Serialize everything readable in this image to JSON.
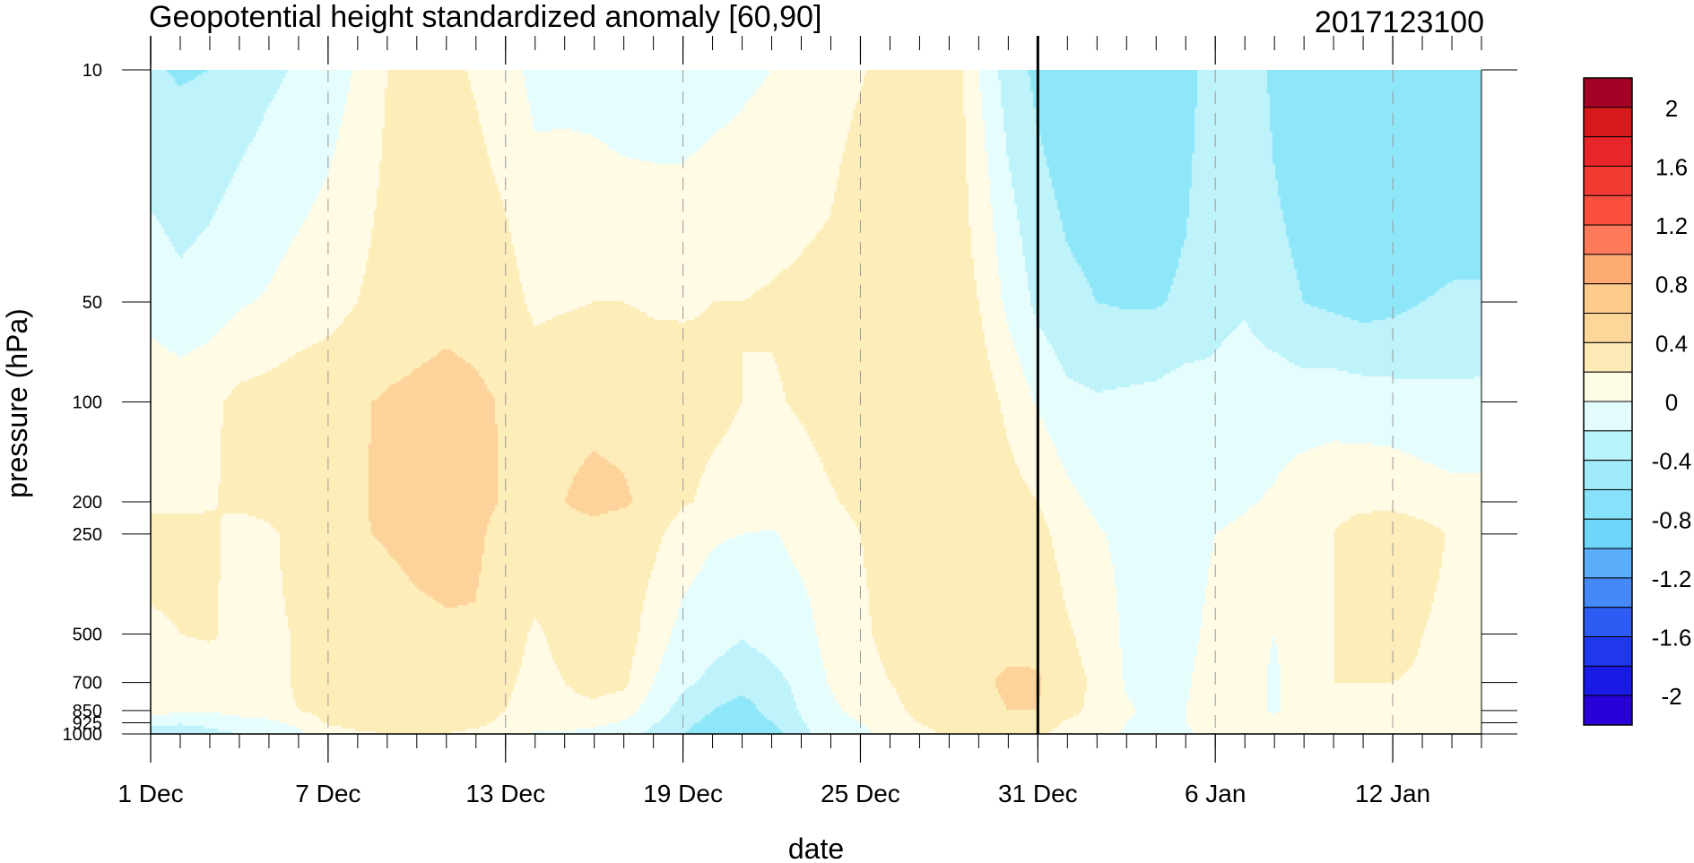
{
  "chart_data": {
    "type": "heatmap",
    "title": "Geopotential height standardized anomaly [60,90]",
    "title_right": "2017123100",
    "xlabel": "date",
    "ylabel": "pressure (hPa)",
    "x_ticks": [
      "1 Dec",
      "7 Dec",
      "13 Dec",
      "19 Dec",
      "25 Dec",
      "31 Dec",
      "6 Jan",
      "12 Jan"
    ],
    "y_scale": "log",
    "y_ticks": [
      "10",
      "50",
      "100",
      "200",
      "250",
      "500",
      "700",
      "850",
      "925",
      "1000"
    ],
    "marker_date": "31 Dec",
    "colorbar_labels": [
      "2",
      "1.6",
      "1.2",
      "0.8",
      "0.4",
      "0",
      "-0.4",
      "-0.8",
      "-1.2",
      "-1.6",
      "-2"
    ],
    "colorbar_colors": [
      "#a50026",
      "#d7191c",
      "#e8262a",
      "#f43b33",
      "#fc4e3e",
      "#fd7a5b",
      "#fdab72",
      "#fdcc8a",
      "#fdd69a",
      "#feeab6",
      "#fffce6",
      "#e3fcfd",
      "#b8f2fb",
      "#a0eafb",
      "#88e1fb",
      "#6fd6fb",
      "#5aaefb",
      "#4688f8",
      "#2e5bf3",
      "#1f38ee",
      "#1a1ae8",
      "#2a00d8"
    ],
    "levels": [
      -0.4,
      -0.2,
      0,
      0.2,
      0.4,
      0.6
    ],
    "level_colors": [
      "#8ee6f9",
      "#bef3fb",
      "#e6fdfd",
      "#fffbe5",
      "#fdedb8",
      "#fdd29b"
    ],
    "day_ticks": [
      1,
      7,
      13,
      19,
      25,
      31,
      37,
      43
    ],
    "y_levels": [
      10,
      50,
      100,
      200,
      250,
      500,
      700,
      850,
      925,
      1000
    ],
    "grid_day_range": [
      1,
      46
    ],
    "field": [
      [
        -0.18,
        0.12,
        0.35,
        0.33,
        0.55,
        0.34,
        0.32,
        0.28,
        0.05,
        -0.08
      ],
      [
        -0.22,
        0.05,
        0.32,
        0.34,
        0.5,
        0.4,
        0.3,
        0.25,
        0.02,
        -0.12
      ],
      [
        -0.2,
        0.1,
        0.36,
        0.38,
        0.45,
        0.42,
        0.3,
        0.22,
        0.05,
        -0.05
      ],
      [
        -0.12,
        0.18,
        0.45,
        0.45,
        0.3,
        0.35,
        0.32,
        0.3,
        0.1,
        0.0
      ],
      [
        -0.04,
        0.22,
        0.48,
        0.48,
        0.35,
        0.35,
        0.35,
        0.34,
        0.15,
        0.05
      ],
      [
        0.02,
        0.28,
        0.52,
        0.52,
        0.5,
        0.42,
        0.42,
        0.4,
        0.25,
        0.15
      ],
      [
        0.1,
        0.32,
        0.55,
        0.56,
        0.55,
        0.45,
        0.45,
        0.46,
        0.42,
        0.32
      ],
      [
        0.22,
        0.4,
        0.58,
        0.58,
        0.58,
        0.48,
        0.48,
        0.48,
        0.45,
        0.38
      ],
      [
        0.4,
        0.48,
        0.62,
        0.64,
        0.62,
        0.5,
        0.5,
        0.48,
        0.46,
        0.4
      ],
      [
        0.46,
        0.52,
        0.64,
        0.68,
        0.66,
        0.55,
        0.52,
        0.48,
        0.45,
        0.4
      ],
      [
        0.44,
        0.55,
        0.66,
        0.68,
        0.66,
        0.58,
        0.54,
        0.48,
        0.45,
        0.4
      ],
      [
        0.38,
        0.52,
        0.64,
        0.66,
        0.64,
        0.58,
        0.55,
        0.48,
        0.44,
        0.36
      ],
      [
        0.28,
        0.48,
        0.58,
        0.58,
        0.52,
        0.46,
        0.42,
        0.4,
        0.36,
        0.3
      ],
      [
        0.14,
        0.36,
        0.52,
        0.54,
        0.5,
        0.38,
        0.36,
        0.34,
        0.3,
        0.18
      ],
      [
        0.14,
        0.38,
        0.56,
        0.6,
        0.56,
        0.44,
        0.4,
        0.35,
        0.28,
        0.18
      ],
      [
        0.12,
        0.4,
        0.56,
        0.64,
        0.55,
        0.48,
        0.46,
        0.36,
        0.26,
        0.12
      ],
      [
        0.08,
        0.4,
        0.55,
        0.62,
        0.52,
        0.5,
        0.44,
        0.3,
        0.18,
        0.05
      ],
      [
        0.08,
        0.38,
        0.5,
        0.56,
        0.45,
        0.3,
        0.2,
        0.1,
        0.02,
        -0.05
      ],
      [
        0.08,
        0.38,
        0.48,
        0.42,
        0.3,
        0.14,
        0.04,
        -0.08,
        -0.15,
        -0.2
      ],
      [
        0.12,
        0.4,
        0.44,
        0.36,
        0.22,
        0.08,
        -0.05,
        -0.2,
        -0.25,
        -0.3
      ],
      [
        0.16,
        0.4,
        0.4,
        0.34,
        0.2,
        0.02,
        -0.14,
        -0.28,
        -0.34,
        -0.38
      ],
      [
        0.2,
        0.42,
        0.38,
        0.3,
        0.18,
        0.08,
        -0.06,
        -0.14,
        -0.2,
        -0.3
      ],
      [
        0.25,
        0.44,
        0.42,
        0.32,
        0.26,
        0.12,
        0.05,
        0.02,
        -0.02,
        -0.05
      ],
      [
        0.3,
        0.46,
        0.48,
        0.38,
        0.3,
        0.28,
        0.22,
        0.16,
        0.12,
        0.1
      ],
      [
        0.38,
        0.6,
        0.55,
        0.45,
        0.4,
        0.36,
        0.32,
        0.26,
        0.2,
        0.15
      ],
      [
        0.48,
        0.58,
        0.56,
        0.5,
        0.48,
        0.46,
        0.4,
        0.36,
        0.32,
        0.28
      ],
      [
        0.56,
        0.56,
        0.58,
        0.56,
        0.54,
        0.52,
        0.46,
        0.44,
        0.4,
        0.36
      ],
      [
        0.58,
        0.54,
        0.56,
        0.56,
        0.56,
        0.54,
        0.5,
        0.5,
        0.46,
        0.42
      ],
      [
        0.2,
        0.4,
        0.52,
        0.56,
        0.56,
        0.56,
        0.58,
        0.56,
        0.5,
        0.45
      ],
      [
        -0.1,
        0.15,
        0.35,
        0.48,
        0.52,
        0.56,
        0.62,
        0.6,
        0.52,
        0.48
      ],
      [
        -0.25,
        -0.05,
        0.18,
        0.4,
        0.46,
        0.55,
        0.62,
        0.6,
        0.5,
        0.44
      ],
      [
        -0.35,
        -0.15,
        0.05,
        0.25,
        0.32,
        0.42,
        0.48,
        0.46,
        0.38,
        0.32
      ],
      [
        -0.38,
        -0.2,
        0.02,
        0.16,
        0.22,
        0.32,
        0.36,
        0.34,
        0.3,
        0.26
      ],
      [
        -0.4,
        -0.22,
        0.04,
        0.1,
        0.15,
        0.16,
        0.18,
        0.22,
        0.2,
        0.18
      ],
      [
        -0.4,
        -0.22,
        0.06,
        0.08,
        0.1,
        0.12,
        0.14,
        0.16,
        0.16,
        0.15
      ],
      [
        -0.3,
        -0.16,
        0.1,
        0.12,
        0.14,
        0.16,
        0.18,
        0.2,
        0.2,
        0.18
      ],
      [
        -0.05,
        -0.05,
        0.05,
        0.14,
        0.2,
        0.24,
        0.28,
        0.3,
        0.28,
        0.24
      ],
      [
        -0.02,
        -0.02,
        0.1,
        0.18,
        0.24,
        0.3,
        0.34,
        0.32,
        0.3,
        0.28
      ],
      [
        -0.26,
        -0.12,
        0.12,
        0.22,
        0.3,
        0.2,
        0.15,
        0.16,
        0.26,
        0.34
      ],
      [
        -0.38,
        -0.2,
        0.1,
        0.3,
        0.36,
        0.34,
        0.38,
        0.38,
        0.36,
        0.34
      ],
      [
        -0.42,
        -0.24,
        0.12,
        0.32,
        0.4,
        0.4,
        0.4,
        0.4,
        0.38,
        0.34
      ],
      [
        -0.45,
        -0.28,
        0.1,
        0.34,
        0.52,
        0.44,
        0.4,
        0.38,
        0.36,
        0.34
      ],
      [
        -0.45,
        -0.25,
        0.08,
        0.34,
        0.55,
        0.46,
        0.4,
        0.38,
        0.36,
        0.34
      ],
      [
        -0.42,
        -0.2,
        0.06,
        0.3,
        0.48,
        0.4,
        0.38,
        0.36,
        0.34,
        0.32
      ],
      [
        -0.4,
        -0.18,
        0.05,
        0.26,
        0.38,
        0.34,
        0.34,
        0.34,
        0.33,
        0.32
      ],
      [
        -0.4,
        -0.18,
        0.06,
        0.26,
        0.36,
        0.34,
        0.34,
        0.33,
        0.33,
        0.32
      ]
    ]
  }
}
